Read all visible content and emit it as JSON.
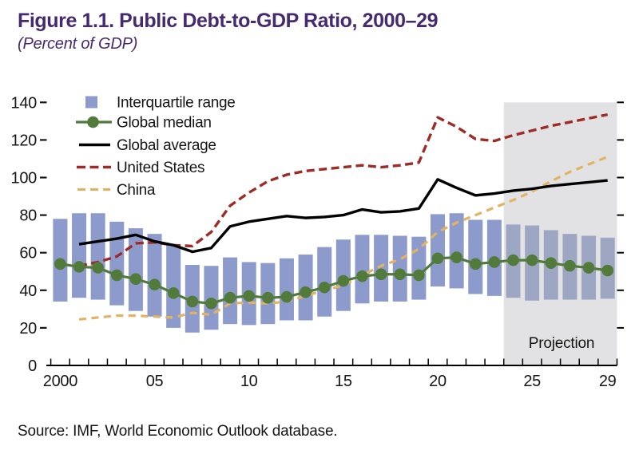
{
  "header": {
    "title": "Figure 1.1. Public Debt-to-GDP Ratio, 2000–29",
    "subtitle": "(Percent of GDP)"
  },
  "footer": {
    "source": "Source: IMF, World Economic Outlook database."
  },
  "projection": {
    "label": "Projection",
    "start_year": 2023.5
  },
  "colors": {
    "title_purple": "#452a70",
    "bar_blue": "#8c9bcb",
    "bar_blue_projection": "#9da7c3",
    "median_green": "#527b3b",
    "average_black": "#000000",
    "us_red": "#9d2b28",
    "china_yellow": "#e0b464",
    "projection_gray": "#e2e2e4",
    "text_black": "#161616"
  },
  "chart_data": {
    "type": "bar+line combo",
    "title": "Figure 1.1. Public Debt-to-GDP Ratio, 2000–29",
    "subtitle": "(Percent of GDP)",
    "xlabel": "",
    "ylabel": "Percent of GDP",
    "ylim": [
      0,
      140
    ],
    "y_ticks": [
      0,
      20,
      40,
      60,
      80,
      100,
      120,
      140
    ],
    "grid": false,
    "legend_position": "top-left inside plot",
    "x": [
      2000,
      2001,
      2002,
      2003,
      2004,
      2005,
      2006,
      2007,
      2008,
      2009,
      2010,
      2011,
      2012,
      2013,
      2014,
      2015,
      2016,
      2017,
      2018,
      2019,
      2020,
      2021,
      2022,
      2023,
      2024,
      2025,
      2026,
      2027,
      2028,
      2029
    ],
    "x_tick_labels": [
      {
        "year": 2000,
        "label": "2000"
      },
      {
        "year": 2005,
        "label": "05"
      },
      {
        "year": 2010,
        "label": "10"
      },
      {
        "year": 2015,
        "label": "15"
      },
      {
        "year": 2020,
        "label": "20"
      },
      {
        "year": 2025,
        "label": "25"
      },
      {
        "year": 2029,
        "label": "29"
      }
    ],
    "series": [
      {
        "name": "Interquartile range",
        "type": "bar-range",
        "color": "#8c9bcb",
        "low": [
          34,
          36,
          35,
          32,
          29,
          26,
          20,
          17.5,
          19,
          22,
          21.5,
          22,
          24,
          24,
          26,
          29,
          33,
          34,
          34,
          35,
          42,
          41,
          38,
          37,
          36,
          34.5,
          35,
          35,
          35,
          35.5
        ],
        "high": [
          78,
          81,
          81,
          76.5,
          73,
          70,
          64,
          53.5,
          53,
          57.5,
          55,
          54.5,
          57,
          59,
          63,
          67,
          69.5,
          69.5,
          69,
          68.5,
          80.5,
          81,
          77.5,
          77.5,
          75,
          74.5,
          72,
          70,
          69,
          68
        ]
      },
      {
        "name": "Global median",
        "type": "line+marker",
        "color": "#527b3b",
        "values": [
          54,
          52.5,
          52,
          48,
          46,
          43,
          38.5,
          34,
          33,
          36,
          37,
          36,
          36.5,
          39,
          41.5,
          45,
          47.5,
          48.5,
          48.5,
          48,
          57,
          57.5,
          54,
          55,
          56,
          56,
          54.5,
          53,
          52,
          50.5
        ]
      },
      {
        "name": "Global average",
        "type": "line",
        "color": "#000000",
        "values": [
          null,
          64.5,
          66,
          67.5,
          69.5,
          66,
          64,
          60.5,
          62.5,
          74,
          76.5,
          78,
          79.5,
          78.5,
          79,
          80,
          83,
          81.5,
          82,
          83.5,
          99,
          94.5,
          90.5,
          91.5,
          93,
          94,
          95.5,
          96.5,
          97.5,
          98.5
        ]
      },
      {
        "name": "United States",
        "type": "dashed-line",
        "color": "#9d2b28",
        "values": [
          null,
          53,
          55,
          58,
          65,
          65.5,
          64,
          63.5,
          71,
          85,
          92,
          98,
          101.5,
          103.5,
          104.5,
          105.5,
          106.5,
          105.5,
          106.5,
          108,
          132,
          127,
          120.5,
          119.5,
          122.5,
          125,
          127.5,
          129.5,
          131.5,
          133.5
        ]
      },
      {
        "name": "China",
        "type": "dashed-line",
        "color": "#e0b464",
        "values": [
          null,
          24.5,
          25.5,
          26.5,
          26.5,
          26,
          25.5,
          28,
          27,
          33,
          33.5,
          33,
          34,
          37,
          40,
          42.5,
          48,
          53,
          56.5,
          62,
          71,
          76,
          80,
          84,
          88,
          92.5,
          98,
          103,
          107,
          111
        ]
      }
    ]
  }
}
